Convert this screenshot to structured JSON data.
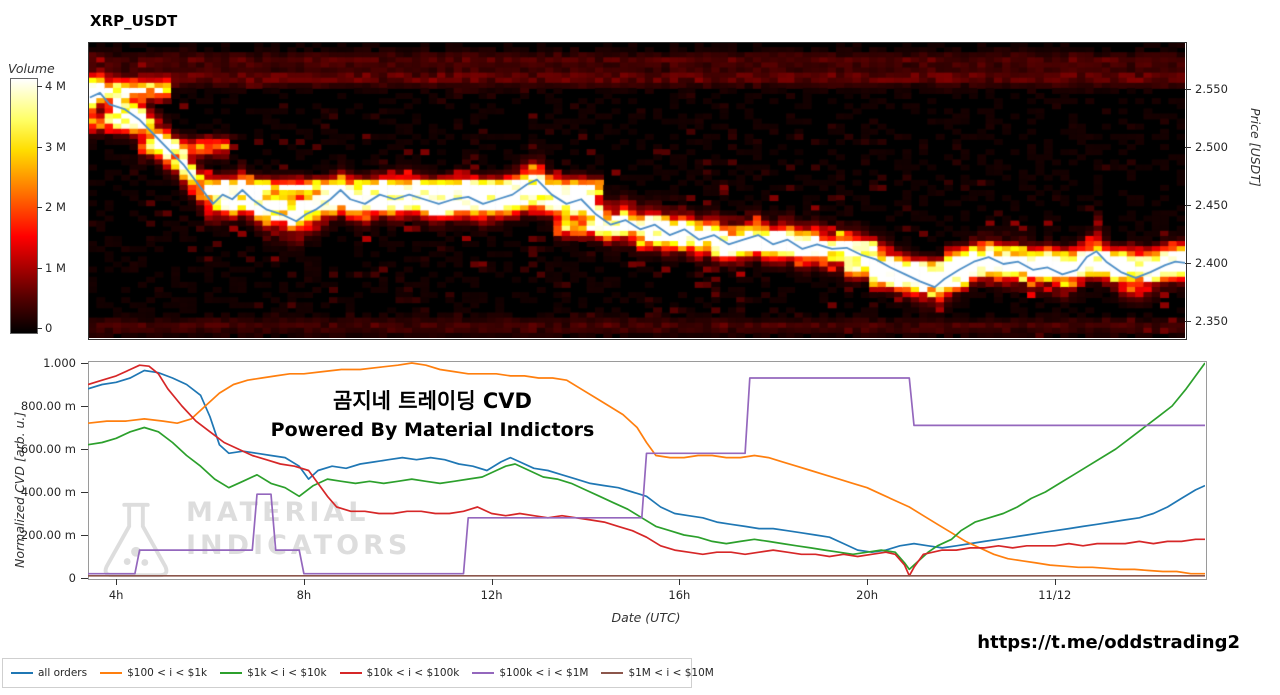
{
  "title": "XRP_USDT",
  "overlay": {
    "line1": "곰지네 트레이딩 CVD",
    "line2": "Powered By Material Indictors"
  },
  "watermark": {
    "line1": "MATERIAL",
    "line2": "INDICATORS"
  },
  "footer_url": "https://t.me/oddstrading2",
  "chart_data": [
    {
      "type": "heatmap",
      "title": "XRP_USDT",
      "ylabel": "Price [USDT]",
      "ytick_labels": [
        "2.550",
        "2.500",
        "2.450",
        "2.400",
        "2.350"
      ],
      "ytick_values": [
        2.55,
        2.5,
        2.45,
        2.4,
        2.35
      ],
      "x_range_hours": [
        3.4,
        27.2
      ],
      "y_range_price": [
        2.335,
        2.591
      ],
      "colorbar": {
        "label": "Volume",
        "ticks": [
          "4 M",
          "3 M",
          "2 M",
          "1 M",
          "0"
        ],
        "tick_values": [
          4,
          3,
          2,
          1,
          0
        ],
        "colormap": "hot",
        "unit": "M"
      },
      "liquidity_bands": [
        {
          "price": 2.55,
          "from": 3.4,
          "to": 5.2,
          "strength": 0.95
        },
        {
          "price": 2.52,
          "from": 3.4,
          "to": 4.6,
          "strength": 0.7
        },
        {
          "price": 2.5,
          "from": 4.4,
          "to": 6.4,
          "strength": 0.65
        },
        {
          "price": 2.465,
          "from": 6.0,
          "to": 14.6,
          "strength": 0.95
        },
        {
          "price": 2.45,
          "from": 6.2,
          "to": 14.4,
          "strength": 0.75
        },
        {
          "price": 2.43,
          "from": 13.5,
          "to": 16.6,
          "strength": 0.8
        },
        {
          "price": 2.42,
          "from": 15.5,
          "to": 19.2,
          "strength": 0.7
        },
        {
          "price": 2.412,
          "from": 17.0,
          "to": 20.6,
          "strength": 0.6
        },
        {
          "price": 2.395,
          "from": 19.8,
          "to": 27.2,
          "strength": 0.9
        },
        {
          "price": 2.385,
          "from": 20.4,
          "to": 22.6,
          "strength": 0.9
        },
        {
          "price": 2.405,
          "from": 22.0,
          "to": 27.2,
          "strength": 0.65
        },
        {
          "price": 2.56,
          "from": 3.4,
          "to": 27.2,
          "strength": 0.16
        },
        {
          "price": 2.575,
          "from": 3.4,
          "to": 27.2,
          "strength": 0.12
        },
        {
          "price": 2.345,
          "from": 3.4,
          "to": 27.2,
          "strength": 0.1
        }
      ],
      "price_line": {
        "color": "#4e8fc7",
        "x": [
          3.44,
          3.66,
          3.87,
          4.19,
          4.51,
          4.83,
          5.15,
          5.47,
          5.79,
          6.11,
          6.32,
          6.53,
          6.75,
          6.96,
          7.28,
          7.6,
          7.92,
          8.13,
          8.34,
          8.66,
          8.88,
          9.09,
          9.41,
          9.73,
          10.05,
          10.37,
          10.69,
          11.01,
          11.33,
          11.65,
          11.97,
          12.29,
          12.61,
          12.93,
          13.14,
          13.46,
          13.78,
          14.1,
          14.42,
          14.74,
          15.06,
          15.38,
          15.7,
          16.02,
          16.34,
          16.66,
          16.98,
          17.3,
          17.62,
          17.94,
          18.26,
          18.58,
          18.9,
          19.22,
          19.54,
          19.86,
          20.17,
          20.49,
          20.81,
          21.13,
          21.45,
          21.77,
          21.98,
          22.3,
          22.62,
          22.94,
          23.26,
          23.58,
          23.9,
          24.22,
          24.54,
          24.86,
          25.07,
          25.28,
          25.49,
          25.81,
          26.13,
          26.45,
          26.77,
          26.99,
          27.2
        ],
        "y": [
          2.543,
          2.547,
          2.537,
          2.533,
          2.524,
          2.511,
          2.498,
          2.485,
          2.468,
          2.451,
          2.459,
          2.455,
          2.463,
          2.455,
          2.446,
          2.442,
          2.436,
          2.442,
          2.446,
          2.455,
          2.463,
          2.455,
          2.451,
          2.459,
          2.455,
          2.459,
          2.455,
          2.451,
          2.455,
          2.457,
          2.451,
          2.455,
          2.459,
          2.468,
          2.472,
          2.459,
          2.451,
          2.455,
          2.442,
          2.433,
          2.437,
          2.429,
          2.433,
          2.424,
          2.429,
          2.42,
          2.424,
          2.416,
          2.42,
          2.424,
          2.416,
          2.42,
          2.412,
          2.416,
          2.412,
          2.413,
          2.407,
          2.403,
          2.396,
          2.39,
          2.384,
          2.379,
          2.386,
          2.394,
          2.401,
          2.405,
          2.399,
          2.401,
          2.394,
          2.396,
          2.39,
          2.394,
          2.405,
          2.41,
          2.401,
          2.392,
          2.387,
          2.392,
          2.398,
          2.401,
          2.4
        ]
      }
    },
    {
      "type": "line",
      "ylabel": "Normalized CVD [arb. u.]",
      "xlabel": "Date (UTC)",
      "ylim": [
        0,
        1
      ],
      "ytick_labels": [
        "1.000",
        "800.00 m",
        "600.00 m",
        "400.00 m",
        "200.00 m",
        "0"
      ],
      "ytick_values": [
        1.0,
        0.8,
        0.6,
        0.4,
        0.2,
        0
      ],
      "xtick_labels": [
        "4h",
        "8h",
        "12h",
        "16h",
        "20h",
        "11/12"
      ],
      "xtick_hours": [
        4,
        8,
        12,
        16,
        20,
        24
      ],
      "x_range_hours": [
        3.4,
        27.2
      ],
      "legend_position": "bottom-left",
      "series": [
        {
          "name": "all orders",
          "color": "#1f77b4",
          "x": [
            3.4,
            3.7,
            4.0,
            4.3,
            4.6,
            4.9,
            5.2,
            5.5,
            5.8,
            6.0,
            6.2,
            6.4,
            6.7,
            7.0,
            7.3,
            7.6,
            7.9,
            8.1,
            8.3,
            8.6,
            8.9,
            9.2,
            9.5,
            9.8,
            10.1,
            10.4,
            10.7,
            11.0,
            11.3,
            11.6,
            11.9,
            12.2,
            12.4,
            12.6,
            12.9,
            13.2,
            13.5,
            13.8,
            14.1,
            14.4,
            14.7,
            15.0,
            15.3,
            15.6,
            15.9,
            16.2,
            16.5,
            16.8,
            17.1,
            17.4,
            17.7,
            18.0,
            18.3,
            18.6,
            18.9,
            19.2,
            19.5,
            19.8,
            20.1,
            20.4,
            20.7,
            21.0,
            21.3,
            21.6,
            21.9,
            22.2,
            22.5,
            22.8,
            23.1,
            23.4,
            23.7,
            24.0,
            24.3,
            24.6,
            24.9,
            25.2,
            25.5,
            25.8,
            26.1,
            26.4,
            26.7,
            27.0,
            27.2
          ],
          "y": [
            0.88,
            0.9,
            0.91,
            0.93,
            0.965,
            0.955,
            0.93,
            0.9,
            0.85,
            0.75,
            0.62,
            0.58,
            0.59,
            0.58,
            0.57,
            0.56,
            0.52,
            0.46,
            0.5,
            0.52,
            0.51,
            0.53,
            0.54,
            0.55,
            0.56,
            0.55,
            0.56,
            0.55,
            0.53,
            0.52,
            0.5,
            0.54,
            0.56,
            0.54,
            0.51,
            0.5,
            0.48,
            0.46,
            0.44,
            0.43,
            0.42,
            0.4,
            0.38,
            0.33,
            0.3,
            0.29,
            0.28,
            0.26,
            0.25,
            0.24,
            0.23,
            0.23,
            0.22,
            0.21,
            0.2,
            0.19,
            0.16,
            0.13,
            0.12,
            0.13,
            0.15,
            0.16,
            0.15,
            0.14,
            0.15,
            0.16,
            0.17,
            0.18,
            0.19,
            0.2,
            0.21,
            0.22,
            0.23,
            0.24,
            0.25,
            0.26,
            0.27,
            0.28,
            0.3,
            0.33,
            0.37,
            0.41,
            0.43
          ]
        },
        {
          "name": "$100 < i < $1k",
          "color": "#ff7f0e",
          "x": [
            3.4,
            3.8,
            4.2,
            4.6,
            5.0,
            5.3,
            5.6,
            5.9,
            6.2,
            6.5,
            6.8,
            7.1,
            7.4,
            7.7,
            8.0,
            8.4,
            8.8,
            9.2,
            9.6,
            10.0,
            10.3,
            10.6,
            10.9,
            11.2,
            11.5,
            11.8,
            12.1,
            12.4,
            12.7,
            13.0,
            13.3,
            13.6,
            13.9,
            14.2,
            14.5,
            14.8,
            15.1,
            15.3,
            15.5,
            15.8,
            16.1,
            16.4,
            16.7,
            17.0,
            17.3,
            17.6,
            17.9,
            18.2,
            18.5,
            18.8,
            19.1,
            19.4,
            19.7,
            20.0,
            20.3,
            20.6,
            20.9,
            21.2,
            21.5,
            21.8,
            22.1,
            22.4,
            22.7,
            23.0,
            23.3,
            23.6,
            23.9,
            24.2,
            24.5,
            24.8,
            25.1,
            25.4,
            25.7,
            26.0,
            26.3,
            26.6,
            26.9,
            27.2
          ],
          "y": [
            0.72,
            0.73,
            0.73,
            0.74,
            0.73,
            0.72,
            0.74,
            0.8,
            0.86,
            0.9,
            0.92,
            0.93,
            0.94,
            0.95,
            0.95,
            0.96,
            0.97,
            0.97,
            0.98,
            0.99,
            1.0,
            0.99,
            0.97,
            0.96,
            0.95,
            0.95,
            0.95,
            0.94,
            0.94,
            0.93,
            0.93,
            0.92,
            0.88,
            0.84,
            0.8,
            0.76,
            0.7,
            0.63,
            0.57,
            0.56,
            0.56,
            0.57,
            0.57,
            0.56,
            0.56,
            0.57,
            0.56,
            0.54,
            0.52,
            0.5,
            0.48,
            0.46,
            0.44,
            0.42,
            0.39,
            0.36,
            0.33,
            0.29,
            0.25,
            0.21,
            0.17,
            0.14,
            0.11,
            0.09,
            0.08,
            0.07,
            0.06,
            0.055,
            0.05,
            0.05,
            0.045,
            0.04,
            0.04,
            0.035,
            0.03,
            0.03,
            0.02,
            0.02
          ]
        },
        {
          "name": "$1k < i < $10k",
          "color": "#2ca02c",
          "x": [
            3.4,
            3.7,
            4.0,
            4.3,
            4.6,
            4.9,
            5.2,
            5.5,
            5.8,
            6.1,
            6.4,
            6.7,
            7.0,
            7.3,
            7.6,
            7.9,
            8.2,
            8.5,
            8.8,
            9.1,
            9.4,
            9.7,
            10.0,
            10.3,
            10.6,
            10.9,
            11.2,
            11.5,
            11.8,
            12.1,
            12.3,
            12.5,
            12.8,
            13.1,
            13.4,
            13.7,
            14.0,
            14.3,
            14.6,
            14.9,
            15.2,
            15.5,
            15.8,
            16.1,
            16.4,
            16.7,
            17.0,
            17.3,
            17.6,
            17.9,
            18.2,
            18.5,
            18.8,
            19.1,
            19.4,
            19.7,
            20.0,
            20.3,
            20.6,
            20.8,
            20.9,
            21.1,
            21.3,
            21.5,
            21.8,
            22.0,
            22.3,
            22.6,
            22.9,
            23.2,
            23.5,
            23.8,
            24.1,
            24.4,
            24.7,
            25.0,
            25.3,
            25.6,
            25.9,
            26.2,
            26.5,
            26.8,
            27.0,
            27.2
          ],
          "y": [
            0.62,
            0.63,
            0.65,
            0.68,
            0.7,
            0.68,
            0.63,
            0.57,
            0.52,
            0.46,
            0.42,
            0.45,
            0.48,
            0.44,
            0.42,
            0.38,
            0.43,
            0.46,
            0.45,
            0.44,
            0.45,
            0.44,
            0.45,
            0.46,
            0.45,
            0.44,
            0.45,
            0.46,
            0.47,
            0.5,
            0.52,
            0.53,
            0.5,
            0.47,
            0.46,
            0.44,
            0.41,
            0.38,
            0.35,
            0.32,
            0.28,
            0.24,
            0.22,
            0.2,
            0.19,
            0.17,
            0.16,
            0.17,
            0.18,
            0.17,
            0.16,
            0.15,
            0.14,
            0.13,
            0.12,
            0.11,
            0.12,
            0.13,
            0.12,
            0.07,
            0.04,
            0.08,
            0.12,
            0.15,
            0.18,
            0.22,
            0.26,
            0.28,
            0.3,
            0.33,
            0.37,
            0.4,
            0.44,
            0.48,
            0.52,
            0.56,
            0.6,
            0.65,
            0.7,
            0.75,
            0.8,
            0.88,
            0.94,
            1.0
          ]
        },
        {
          "name": "$10k < i < $100k",
          "color": "#d62728",
          "x": [
            3.4,
            3.7,
            4.0,
            4.3,
            4.5,
            4.7,
            4.9,
            5.1,
            5.4,
            5.7,
            6.0,
            6.3,
            6.6,
            6.9,
            7.2,
            7.5,
            7.8,
            8.1,
            8.3,
            8.5,
            8.7,
            9.0,
            9.3,
            9.6,
            9.9,
            10.2,
            10.5,
            10.8,
            11.1,
            11.4,
            11.7,
            12.0,
            12.3,
            12.6,
            12.9,
            13.2,
            13.5,
            13.8,
            14.1,
            14.4,
            14.7,
            15.0,
            15.3,
            15.6,
            15.9,
            16.2,
            16.5,
            16.8,
            17.1,
            17.4,
            17.7,
            18.0,
            18.3,
            18.6,
            18.9,
            19.2,
            19.5,
            19.8,
            20.1,
            20.4,
            20.6,
            20.8,
            20.9,
            21.0,
            21.2,
            21.4,
            21.6,
            21.9,
            22.2,
            22.5,
            22.8,
            23.1,
            23.4,
            23.7,
            24.0,
            24.3,
            24.6,
            24.9,
            25.2,
            25.5,
            25.8,
            26.1,
            26.4,
            26.7,
            27.0,
            27.2
          ],
          "y": [
            0.9,
            0.92,
            0.94,
            0.97,
            0.99,
            0.985,
            0.95,
            0.88,
            0.8,
            0.73,
            0.68,
            0.63,
            0.6,
            0.57,
            0.55,
            0.53,
            0.52,
            0.5,
            0.44,
            0.38,
            0.33,
            0.31,
            0.31,
            0.3,
            0.3,
            0.31,
            0.31,
            0.3,
            0.3,
            0.31,
            0.33,
            0.3,
            0.29,
            0.3,
            0.29,
            0.28,
            0.29,
            0.28,
            0.27,
            0.26,
            0.24,
            0.22,
            0.19,
            0.15,
            0.13,
            0.12,
            0.11,
            0.12,
            0.12,
            0.11,
            0.12,
            0.13,
            0.12,
            0.11,
            0.11,
            0.1,
            0.11,
            0.1,
            0.11,
            0.12,
            0.11,
            0.06,
            0.01,
            0.05,
            0.11,
            0.12,
            0.13,
            0.13,
            0.14,
            0.14,
            0.15,
            0.14,
            0.15,
            0.15,
            0.15,
            0.16,
            0.15,
            0.16,
            0.16,
            0.16,
            0.17,
            0.16,
            0.17,
            0.17,
            0.18,
            0.18
          ]
        },
        {
          "name": "$100k < i < $1M",
          "color": "#9467bd",
          "x": [
            3.4,
            4.4,
            4.5,
            6.9,
            7.0,
            7.3,
            7.4,
            7.9,
            8.0,
            11.4,
            11.5,
            15.2,
            15.3,
            17.4,
            17.5,
            20.9,
            21.0,
            27.2
          ],
          "y": [
            0.02,
            0.02,
            0.13,
            0.13,
            0.39,
            0.39,
            0.13,
            0.13,
            0.02,
            0.02,
            0.28,
            0.28,
            0.58,
            0.58,
            0.93,
            0.93,
            0.71,
            0.71
          ]
        },
        {
          "name": "$1M < i < $10M",
          "color": "#8c564b",
          "x": [
            3.4,
            27.2
          ],
          "y": [
            0.01,
            0.01
          ]
        }
      ]
    }
  ]
}
